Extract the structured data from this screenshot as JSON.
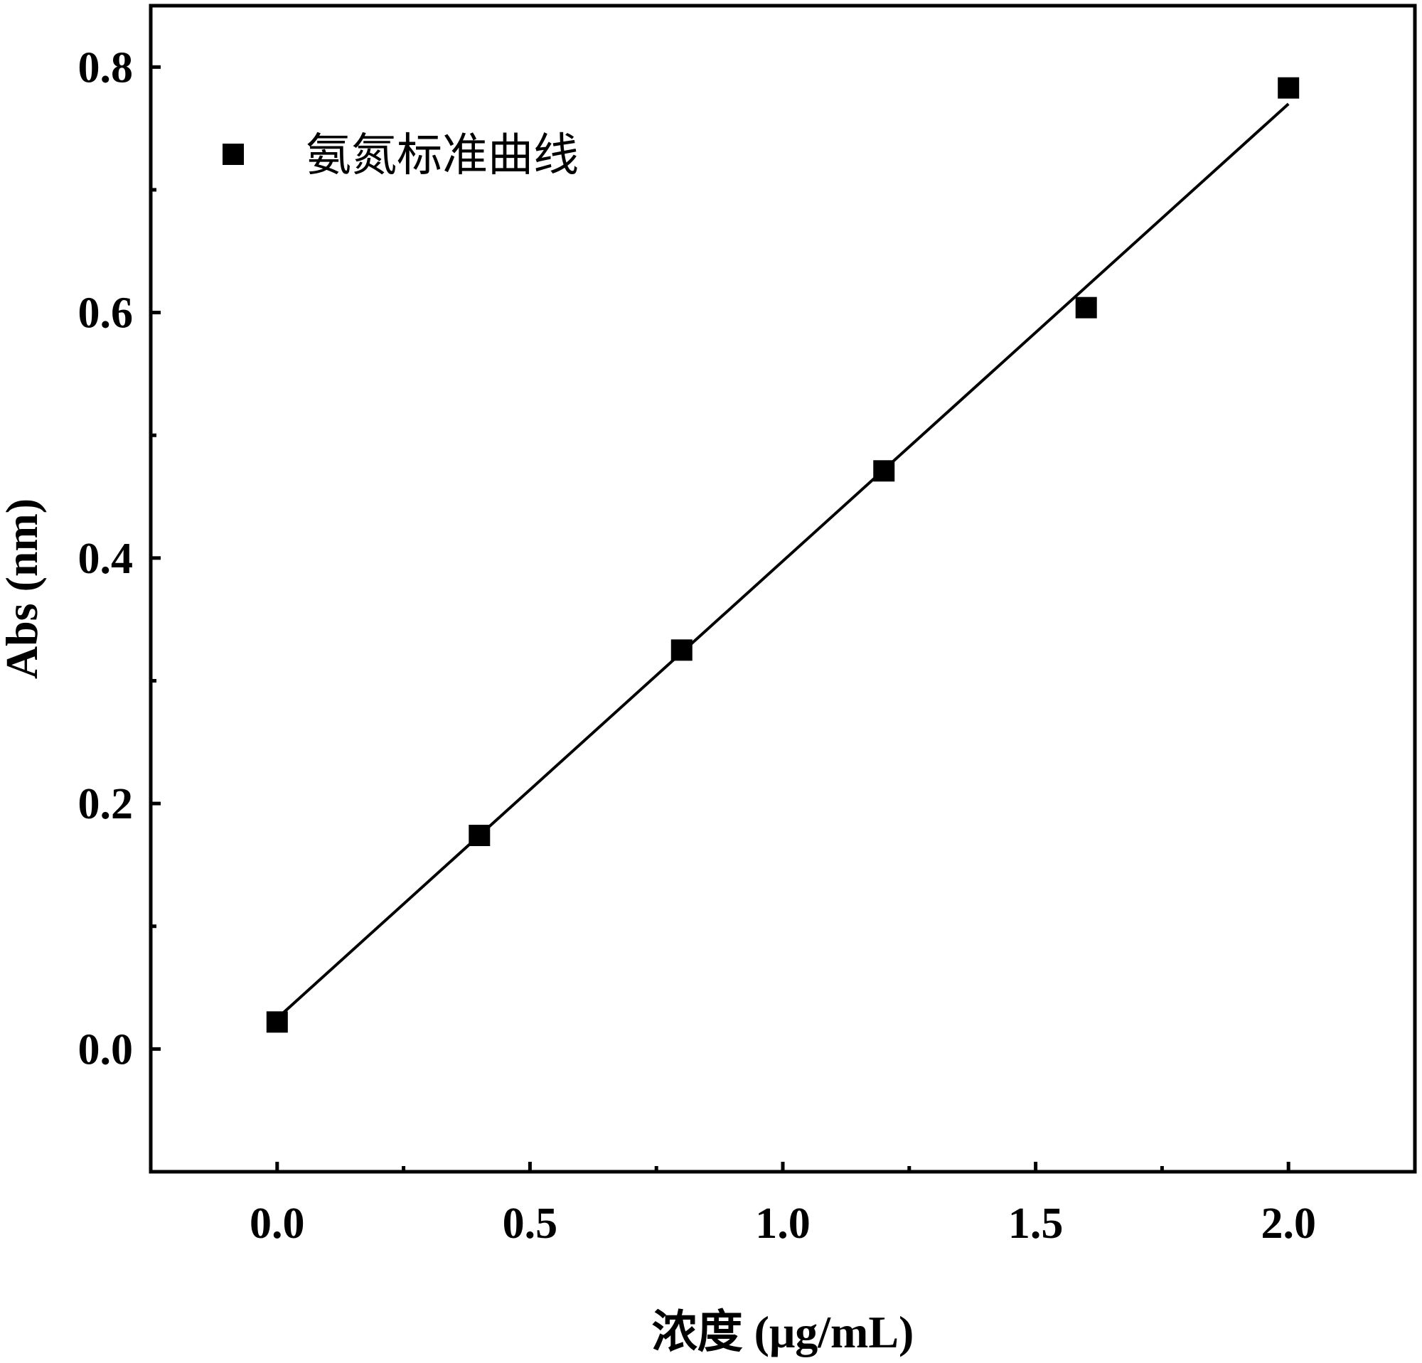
{
  "chart_data": {
    "type": "scatter",
    "xlabel": "浓度 (μg/mL)",
    "ylabel": "Abs (nm)",
    "xlim": [
      -0.25,
      2.25
    ],
    "ylim": [
      -0.1,
      0.85
    ],
    "x_ticks": [
      "0.0",
      "0.5",
      "1.0",
      "1.5",
      "2.0"
    ],
    "y_ticks": [
      "0.0",
      "0.2",
      "0.4",
      "0.6",
      "0.8"
    ],
    "grid": false,
    "legend_position": "top-left",
    "series": [
      {
        "name": "氨氮标准曲线",
        "marker": "square",
        "color": "#000000",
        "x": [
          0.0,
          0.4,
          0.8,
          1.2,
          1.6,
          2.0
        ],
        "y": [
          0.022,
          0.174,
          0.325,
          0.471,
          0.604,
          0.783
        ]
      }
    ],
    "fit_line": {
      "x": [
        0.0,
        2.0
      ],
      "y": [
        0.025,
        0.77
      ]
    }
  }
}
